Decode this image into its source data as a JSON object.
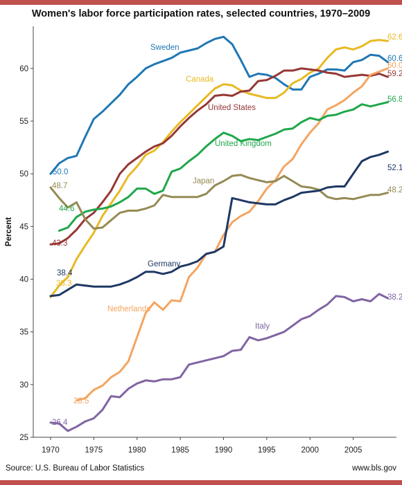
{
  "chart_data": {
    "type": "line",
    "title": "Women's labor force participation rates, selected countries, 1970–2009",
    "xlabel": "",
    "ylabel": "Percent",
    "xlim": [
      1968,
      2010
    ],
    "ylim": [
      25,
      64
    ],
    "xticks": [
      1970,
      1975,
      1980,
      1985,
      1990,
      1995,
      2000,
      2005
    ],
    "yticks": [
      25,
      30,
      35,
      40,
      45,
      50,
      55,
      60
    ],
    "grid": false,
    "legend": "none",
    "series": [
      {
        "name": "Sweden",
        "color": "#1f77b4",
        "x": [
          1970,
          1971,
          1972,
          1973,
          1974,
          1975,
          1976,
          1977,
          1978,
          1979,
          1980,
          1981,
          1982,
          1983,
          1984,
          1985,
          1986,
          1987,
          1988,
          1989,
          1990,
          1991,
          1992,
          1993,
          1994,
          1995,
          1996,
          1997,
          1998,
          1999,
          2000,
          2001,
          2002,
          2003,
          2004,
          2005,
          2006,
          2007,
          2008,
          2009
        ],
        "values": [
          50.0,
          51.0,
          51.5,
          51.7,
          53.5,
          55.2,
          55.9,
          56.7,
          57.5,
          58.5,
          59.2,
          60.0,
          60.4,
          60.7,
          61.0,
          61.5,
          61.7,
          61.9,
          62.4,
          62.8,
          63.0,
          62.3,
          60.8,
          59.2,
          59.5,
          59.4,
          59.1,
          58.5,
          58.0,
          58.0,
          59.2,
          59.5,
          59.9,
          59.9,
          59.8,
          60.6,
          60.8,
          61.3,
          61.2,
          60.6
        ],
        "start_label": "50.0",
        "end_label": "60.6"
      },
      {
        "name": "Canada",
        "color": "#e8b923",
        "x": [
          1970,
          1971,
          1972,
          1973,
          1974,
          1975,
          1976,
          1977,
          1978,
          1979,
          1980,
          1981,
          1982,
          1983,
          1984,
          1985,
          1986,
          1987,
          1988,
          1989,
          1990,
          1991,
          1992,
          1993,
          1994,
          1995,
          1996,
          1997,
          1998,
          1999,
          2000,
          2001,
          2002,
          2003,
          2004,
          2005,
          2006,
          2007,
          2008,
          2009
        ],
        "values": [
          38.3,
          39.4,
          40.2,
          41.9,
          43.2,
          44.4,
          46.0,
          47.2,
          48.4,
          49.8,
          50.7,
          51.8,
          52.2,
          53.0,
          54.0,
          54.9,
          55.7,
          56.5,
          57.3,
          58.1,
          58.5,
          58.4,
          57.9,
          57.6,
          57.4,
          57.2,
          57.2,
          57.7,
          58.6,
          59.0,
          59.6,
          60.0,
          61.0,
          61.8,
          62.0,
          61.8,
          62.1,
          62.6,
          62.7,
          62.6
        ],
        "start_label": "38.3",
        "end_label": "62.6"
      },
      {
        "name": "United States",
        "color": "#953735",
        "x": [
          1970,
          1971,
          1972,
          1973,
          1974,
          1975,
          1976,
          1977,
          1978,
          1979,
          1980,
          1981,
          1982,
          1983,
          1984,
          1985,
          1986,
          1987,
          1988,
          1989,
          1990,
          1991,
          1992,
          1993,
          1994,
          1995,
          1996,
          1997,
          1998,
          1999,
          2000,
          2001,
          2002,
          2003,
          2004,
          2005,
          2006,
          2007,
          2008,
          2009
        ],
        "values": [
          43.3,
          43.4,
          43.9,
          44.7,
          45.7,
          46.3,
          47.3,
          48.4,
          50.0,
          50.9,
          51.5,
          52.1,
          52.6,
          52.9,
          53.6,
          54.5,
          55.3,
          56.0,
          56.6,
          57.4,
          57.5,
          57.4,
          57.8,
          57.9,
          58.8,
          58.9,
          59.3,
          59.8,
          59.8,
          60.0,
          59.9,
          59.8,
          59.6,
          59.5,
          59.2,
          59.3,
          59.4,
          59.3,
          59.5,
          59.2
        ],
        "start_label": "43.3",
        "end_label": "59.2"
      },
      {
        "name": "Netherlands",
        "color": "#f4a460",
        "x": [
          1973,
          1974,
          1975,
          1976,
          1977,
          1978,
          1979,
          1980,
          1981,
          1982,
          1983,
          1984,
          1985,
          1986,
          1987,
          1988,
          1989,
          1990,
          1991,
          1992,
          1993,
          1994,
          1995,
          1996,
          1997,
          1998,
          1999,
          2000,
          2001,
          2002,
          2003,
          2004,
          2005,
          2006,
          2007,
          2008,
          2009
        ],
        "values": [
          28.5,
          28.7,
          29.5,
          29.9,
          30.7,
          31.2,
          32.2,
          34.5,
          36.8,
          37.8,
          37.1,
          38.0,
          37.9,
          40.2,
          41.1,
          42.4,
          42.6,
          44.2,
          45.4,
          46.0,
          46.4,
          47.4,
          48.6,
          49.4,
          50.7,
          51.4,
          52.8,
          53.9,
          54.8,
          56.1,
          56.5,
          57.0,
          57.7,
          58.3,
          59.4,
          59.7,
          60.0
        ],
        "start_label": "28.5",
        "end_label": "60.0"
      },
      {
        "name": "United Kingdom",
        "color": "#1fa74a",
        "x": [
          1971,
          1972,
          1973,
          1974,
          1975,
          1976,
          1977,
          1978,
          1979,
          1980,
          1981,
          1982,
          1983,
          1984,
          1985,
          1986,
          1987,
          1988,
          1989,
          1990,
          1991,
          1992,
          1993,
          1994,
          1995,
          1996,
          1997,
          1998,
          1999,
          2000,
          2001,
          2002,
          2003,
          2004,
          2005,
          2006,
          2007,
          2008,
          2009
        ],
        "values": [
          44.6,
          44.9,
          45.9,
          46.4,
          46.6,
          46.7,
          46.9,
          47.3,
          47.8,
          48.6,
          48.6,
          48.1,
          48.4,
          50.2,
          50.5,
          51.2,
          51.8,
          52.6,
          53.3,
          53.9,
          53.6,
          53.1,
          53.3,
          53.2,
          53.5,
          53.8,
          54.2,
          54.3,
          54.9,
          55.3,
          55.1,
          55.5,
          55.6,
          55.9,
          56.1,
          56.6,
          56.4,
          56.6,
          56.8
        ],
        "start_label": "44.6",
        "end_label": "56.8"
      },
      {
        "name": "Japan",
        "color": "#948a54",
        "x": [
          1970,
          1971,
          1972,
          1973,
          1974,
          1975,
          1976,
          1977,
          1978,
          1979,
          1980,
          1981,
          1982,
          1983,
          1984,
          1985,
          1986,
          1987,
          1988,
          1989,
          1990,
          1991,
          1992,
          1993,
          1994,
          1995,
          1996,
          1997,
          1998,
          1999,
          2000,
          2001,
          2002,
          2003,
          2004,
          2005,
          2006,
          2007,
          2008,
          2009
        ],
        "values": [
          48.7,
          47.7,
          46.8,
          47.3,
          45.7,
          44.8,
          44.9,
          45.6,
          46.3,
          46.5,
          46.5,
          46.7,
          47.0,
          48.0,
          47.8,
          47.8,
          47.8,
          47.8,
          48.1,
          48.9,
          49.3,
          49.8,
          49.9,
          49.6,
          49.4,
          49.2,
          49.3,
          49.8,
          49.3,
          48.8,
          48.7,
          48.5,
          47.8,
          47.6,
          47.7,
          47.6,
          47.8,
          48.0,
          48.0,
          48.2
        ],
        "start_label": "48.7",
        "end_label": "48.2"
      },
      {
        "name": "Germany",
        "color": "#1f3864",
        "x": [
          1970,
          1971,
          1972,
          1973,
          1974,
          1975,
          1976,
          1977,
          1978,
          1979,
          1980,
          1981,
          1982,
          1983,
          1984,
          1985,
          1986,
          1987,
          1988,
          1989,
          1990,
          1991,
          1992,
          1993,
          1994,
          1995,
          1996,
          1997,
          1998,
          1999,
          2000,
          2001,
          2002,
          2003,
          2004,
          2005,
          2006,
          2007,
          2008,
          2009
        ],
        "values": [
          38.4,
          38.5,
          39.0,
          39.5,
          39.4,
          39.3,
          39.3,
          39.3,
          39.5,
          39.8,
          40.2,
          40.7,
          40.7,
          40.5,
          40.7,
          41.2,
          41.4,
          41.7,
          42.4,
          42.6,
          43.1,
          47.7,
          47.5,
          47.3,
          47.2,
          47.1,
          47.1,
          47.5,
          47.8,
          48.2,
          48.3,
          48.4,
          48.7,
          48.8,
          48.8,
          50.0,
          51.2,
          51.6,
          51.8,
          52.1
        ],
        "start_label": "38.4",
        "end_label": "52.1"
      },
      {
        "name": "Italy",
        "color": "#8064a2",
        "x": [
          1970,
          1971,
          1972,
          1973,
          1974,
          1975,
          1976,
          1977,
          1978,
          1979,
          1980,
          1981,
          1982,
          1983,
          1984,
          1985,
          1986,
          1987,
          1988,
          1989,
          1990,
          1991,
          1992,
          1993,
          1994,
          1995,
          1996,
          1997,
          1998,
          1999,
          2000,
          2001,
          2002,
          2003,
          2004,
          2005,
          2006,
          2007,
          2008,
          2009
        ],
        "values": [
          26.4,
          26.3,
          25.6,
          26.0,
          26.5,
          26.8,
          27.6,
          28.9,
          28.8,
          29.6,
          30.1,
          30.4,
          30.3,
          30.5,
          30.5,
          30.7,
          31.9,
          32.1,
          32.3,
          32.5,
          32.7,
          33.2,
          33.3,
          34.5,
          34.2,
          34.4,
          34.7,
          35.0,
          35.6,
          36.2,
          36.5,
          37.1,
          37.6,
          38.4,
          38.3,
          37.9,
          38.1,
          37.9,
          38.6,
          38.2
        ],
        "start_label": "26.4",
        "end_label": "38.2"
      }
    ]
  },
  "footer": {
    "source": "Source: U.S. Bureau of Labor Statistics",
    "site": "www.bls.gov"
  }
}
